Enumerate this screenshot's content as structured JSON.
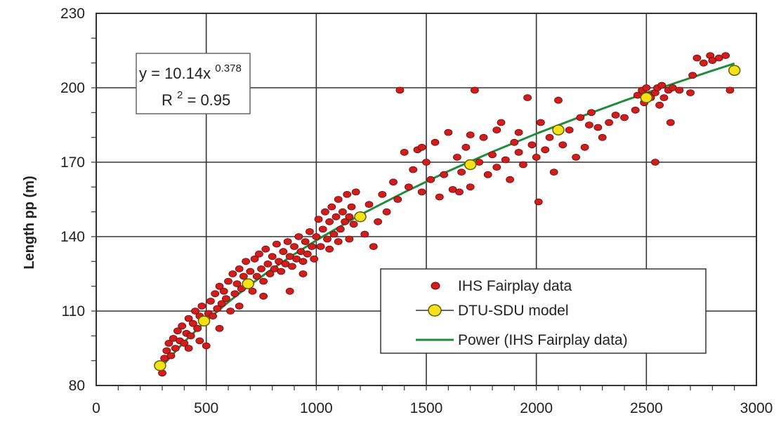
{
  "chart_data": {
    "type": "scatter",
    "title": "",
    "xlabel": "",
    "ylabel": "Length pp (m)",
    "xlim": [
      0,
      3000
    ],
    "ylim": [
      80,
      230
    ],
    "x_ticks": [
      "0",
      "500",
      "1000",
      "1500",
      "2000",
      "2500",
      "3000"
    ],
    "y_ticks": [
      "80",
      "110",
      "140",
      "170",
      "200",
      "230"
    ],
    "grid": true,
    "legend_position": "bottom-right",
    "annotation": {
      "equation_prefix": "y = 10.14x",
      "equation_exponent": "0.378",
      "r2_prefix": "R",
      "r2_exponent": "2",
      "r2_suffix": " = 0.95"
    },
    "series": [
      {
        "name": "IHS Fairplay data",
        "kind": "scatter",
        "color": "#cc1f1f",
        "edge_color": "#7a0000",
        "points": [
          [
            290,
            88
          ],
          [
            300,
            85
          ],
          [
            310,
            91
          ],
          [
            320,
            94
          ],
          [
            330,
            97
          ],
          [
            340,
            92
          ],
          [
            350,
            99
          ],
          [
            360,
            95
          ],
          [
            370,
            102
          ],
          [
            380,
            98
          ],
          [
            390,
            104
          ],
          [
            400,
            97
          ],
          [
            410,
            101
          ],
          [
            420,
            107
          ],
          [
            430,
            100
          ],
          [
            440,
            105
          ],
          [
            450,
            110
          ],
          [
            460,
            103
          ],
          [
            470,
            108
          ],
          [
            480,
            112
          ],
          [
            490,
            106
          ],
          [
            500,
            96
          ],
          [
            510,
            109
          ],
          [
            520,
            114
          ],
          [
            530,
            108
          ],
          [
            540,
            117
          ],
          [
            550,
            111
          ],
          [
            560,
            120
          ],
          [
            570,
            113
          ],
          [
            580,
            118
          ],
          [
            590,
            115
          ],
          [
            600,
            122
          ],
          [
            610,
            110
          ],
          [
            620,
            125
          ],
          [
            630,
            117
          ],
          [
            640,
            121
          ],
          [
            650,
            127
          ],
          [
            660,
            119
          ],
          [
            670,
            124
          ],
          [
            680,
            130
          ],
          [
            690,
            121
          ],
          [
            700,
            126
          ],
          [
            710,
            118
          ],
          [
            720,
            131
          ],
          [
            730,
            124
          ],
          [
            740,
            133
          ],
          [
            750,
            127
          ],
          [
            760,
            122
          ],
          [
            770,
            135
          ],
          [
            780,
            129
          ],
          [
            790,
            125
          ],
          [
            800,
            132
          ],
          [
            810,
            127
          ],
          [
            820,
            137
          ],
          [
            830,
            130
          ],
          [
            840,
            126
          ],
          [
            850,
            134
          ],
          [
            860,
            129
          ],
          [
            870,
            138
          ],
          [
            880,
            132
          ],
          [
            890,
            128
          ],
          [
            900,
            136
          ],
          [
            910,
            131
          ],
          [
            920,
            140
          ],
          [
            930,
            134
          ],
          [
            940,
            130
          ],
          [
            950,
            138
          ],
          [
            960,
            133
          ],
          [
            970,
            142
          ],
          [
            980,
            136
          ],
          [
            990,
            131
          ],
          [
            1000,
            140
          ],
          [
            1010,
            147
          ],
          [
            1020,
            136
          ],
          [
            1030,
            143
          ],
          [
            1040,
            150
          ],
          [
            1050,
            139
          ],
          [
            1060,
            146
          ],
          [
            1070,
            152
          ],
          [
            1080,
            141
          ],
          [
            1090,
            148
          ],
          [
            1100,
            155
          ],
          [
            1110,
            143
          ],
          [
            1120,
            150
          ],
          [
            1130,
            146
          ],
          [
            1140,
            157
          ],
          [
            1150,
            139
          ],
          [
            1160,
            152
          ],
          [
            1170,
            145
          ],
          [
            1180,
            158
          ],
          [
            1200,
            148
          ],
          [
            1220,
            141
          ],
          [
            1240,
            153
          ],
          [
            1260,
            136
          ],
          [
            1280,
            146
          ],
          [
            1300,
            157
          ],
          [
            1320,
            150
          ],
          [
            1350,
            162
          ],
          [
            1370,
            155
          ],
          [
            1380,
            199
          ],
          [
            1400,
            174
          ],
          [
            1420,
            160
          ],
          [
            1440,
            167
          ],
          [
            1460,
            175
          ],
          [
            1480,
            158
          ],
          [
            1500,
            170
          ],
          [
            1520,
            163
          ],
          [
            1540,
            178
          ],
          [
            1560,
            156
          ],
          [
            1580,
            165
          ],
          [
            1600,
            182
          ],
          [
            1620,
            159
          ],
          [
            1640,
            172
          ],
          [
            1660,
            166
          ],
          [
            1680,
            176
          ],
          [
            1700,
            160
          ],
          [
            1720,
            199
          ],
          [
            1740,
            170
          ],
          [
            1760,
            180
          ],
          [
            1780,
            165
          ],
          [
            1800,
            173
          ],
          [
            1820,
            168
          ],
          [
            1840,
            186
          ],
          [
            1860,
            171
          ],
          [
            1880,
            163
          ],
          [
            1900,
            178
          ],
          [
            1920,
            174
          ],
          [
            1940,
            169
          ],
          [
            1960,
            196
          ],
          [
            1980,
            177
          ],
          [
            2000,
            172
          ],
          [
            2010,
            154
          ],
          [
            2020,
            186
          ],
          [
            2040,
            175
          ],
          [
            2060,
            180
          ],
          [
            2080,
            166
          ],
          [
            2100,
            195
          ],
          [
            2120,
            177
          ],
          [
            2150,
            183
          ],
          [
            2180,
            172
          ],
          [
            2200,
            188
          ],
          [
            2220,
            176
          ],
          [
            2240,
            185
          ],
          [
            2250,
            190
          ],
          [
            2280,
            184
          ],
          [
            2300,
            180
          ],
          [
            2330,
            186
          ],
          [
            2360,
            189
          ],
          [
            2400,
            188
          ],
          [
            2450,
            191
          ],
          [
            2460,
            197
          ],
          [
            2480,
            199
          ],
          [
            2490,
            194
          ],
          [
            2500,
            200
          ],
          [
            2510,
            197
          ],
          [
            2520,
            196
          ],
          [
            2540,
            198
          ],
          [
            2550,
            200
          ],
          [
            2560,
            193
          ],
          [
            2570,
            201
          ],
          [
            2580,
            196
          ],
          [
            2600,
            199
          ],
          [
            2610,
            186
          ],
          [
            2620,
            200
          ],
          [
            2650,
            199
          ],
          [
            2700,
            198
          ],
          [
            2710,
            205
          ],
          [
            2730,
            212
          ],
          [
            2760,
            210
          ],
          [
            2790,
            213
          ],
          [
            2800,
            211
          ],
          [
            2830,
            212
          ],
          [
            2860,
            213
          ],
          [
            2880,
            199
          ],
          [
            2540,
            170
          ],
          [
            1480,
            176
          ],
          [
            1650,
            158
          ],
          [
            1700,
            181
          ],
          [
            1820,
            183
          ],
          [
            1920,
            182
          ],
          [
            1100,
            138
          ],
          [
            1150,
            148
          ],
          [
            1060,
            135
          ],
          [
            940,
            125
          ],
          [
            880,
            118
          ],
          [
            760,
            116
          ],
          [
            650,
            112
          ],
          [
            560,
            103
          ],
          [
            470,
            98
          ],
          [
            420,
            95
          ]
        ]
      },
      {
        "name": "DTU-SDU model",
        "kind": "scatter",
        "color": "#f2e21b",
        "edge_color": "#6b5b00",
        "points": [
          [
            290,
            88
          ],
          [
            490,
            106
          ],
          [
            690,
            121
          ],
          [
            1200,
            148
          ],
          [
            1700,
            169
          ],
          [
            2100,
            183
          ],
          [
            2500,
            196
          ],
          [
            2900,
            207
          ]
        ]
      },
      {
        "name": "Power (IHS Fairplay data)",
        "kind": "line",
        "color": "#1e8c3a",
        "points": [
          [
            290,
            86.9
          ],
          [
            400,
            97.6
          ],
          [
            500,
            106.1
          ],
          [
            600,
            113.6
          ],
          [
            700,
            120.6
          ],
          [
            800,
            127.0
          ],
          [
            900,
            132.9
          ],
          [
            1000,
            138.5
          ],
          [
            1200,
            148.8
          ],
          [
            1400,
            157.9
          ],
          [
            1600,
            166.4
          ],
          [
            1800,
            174.2
          ],
          [
            2000,
            181.5
          ],
          [
            2200,
            188.3
          ],
          [
            2400,
            194.8
          ],
          [
            2600,
            201.0
          ],
          [
            2800,
            206.9
          ],
          [
            2900,
            209.8
          ]
        ]
      }
    ]
  }
}
